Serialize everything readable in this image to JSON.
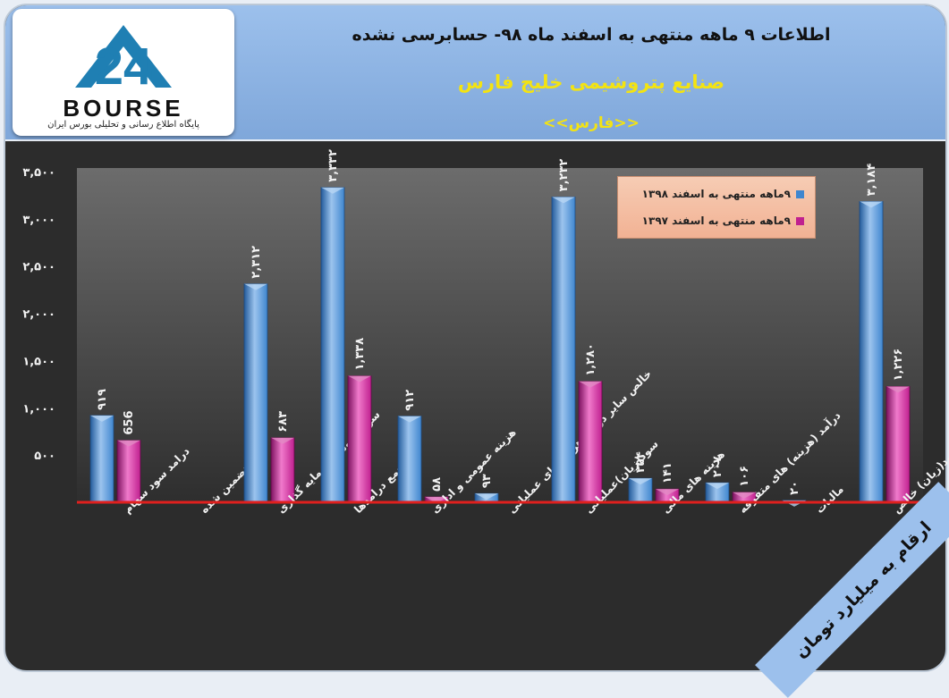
{
  "header": {
    "line1": "اطلاعات ۹ ماهه منتهی به اسفند ماه ۹۸- حسابرسی نشده",
    "line2": "صنایع پتروشیمی خلیج فارس",
    "line3": "<<فارس>>"
  },
  "logo": {
    "number": "24",
    "word": "BOURSE",
    "tagline": "پایگاه اطلاع رسانی و تحلیلی بورس ایران"
  },
  "units_label": "ارقام به میلیارد تومان",
  "colors": {
    "series1": "#3f86cf",
    "series2": "#c0208f",
    "baseline": "#e0201e"
  },
  "chart_data": {
    "type": "bar",
    "ylim": [
      0,
      3500
    ],
    "yticks": [
      "۳,۵۰۰",
      "۳,۰۰۰",
      "۲,۵۰۰",
      "۲,۰۰۰",
      "۱,۵۰۰",
      "۱,۰۰۰",
      "۵۰۰"
    ],
    "ytick_values": [
      3500,
      3000,
      2500,
      2000,
      1500,
      1000,
      500
    ],
    "categories": [
      "درامد سود سهام",
      "سود تضمین شده",
      "سود فروش سرمایه گذاری",
      "جمع درامدها",
      "هزینه عمومی و اداری",
      "خالص سایر درامد(هزینه)های عملیاتی",
      "سود(زیان)عملیاتی",
      "هزینه های مالی",
      "درآمد (هزینه) های متفرقه",
      "مالیات",
      "سود(زیان) خالص"
    ],
    "series": [
      {
        "name": "۹ماهه منتهی به اسفند ۱۳۹۸",
        "values": [
          919,
          null,
          2312,
          3332,
          912,
          93,
          3232,
          254,
          207,
          20,
          3184
        ],
        "labels": [
          "۹۱۹",
          "",
          "۲,۳۱۲",
          "۳,۳۳۲",
          "۹۱۲",
          "۹۳",
          "۳,۲۳۲",
          "۲۵۴",
          "۲۰۷",
          "۲۰",
          "۳,۱۸۴"
        ]
      },
      {
        "name": "۹ماهه منتهی به اسفند ۱۳۹۷",
        "values": [
          656,
          null,
          683,
          1338,
          58,
          null,
          1280,
          141,
          106,
          null,
          1226
        ],
        "labels": [
          "656",
          "",
          "۶۸۳",
          "۱,۳۳۸",
          "۵۸",
          "",
          "۱,۲۸۰",
          "۱۴۱",
          "۱۰۶",
          "",
          "۱,۲۲۶"
        ]
      }
    ]
  }
}
